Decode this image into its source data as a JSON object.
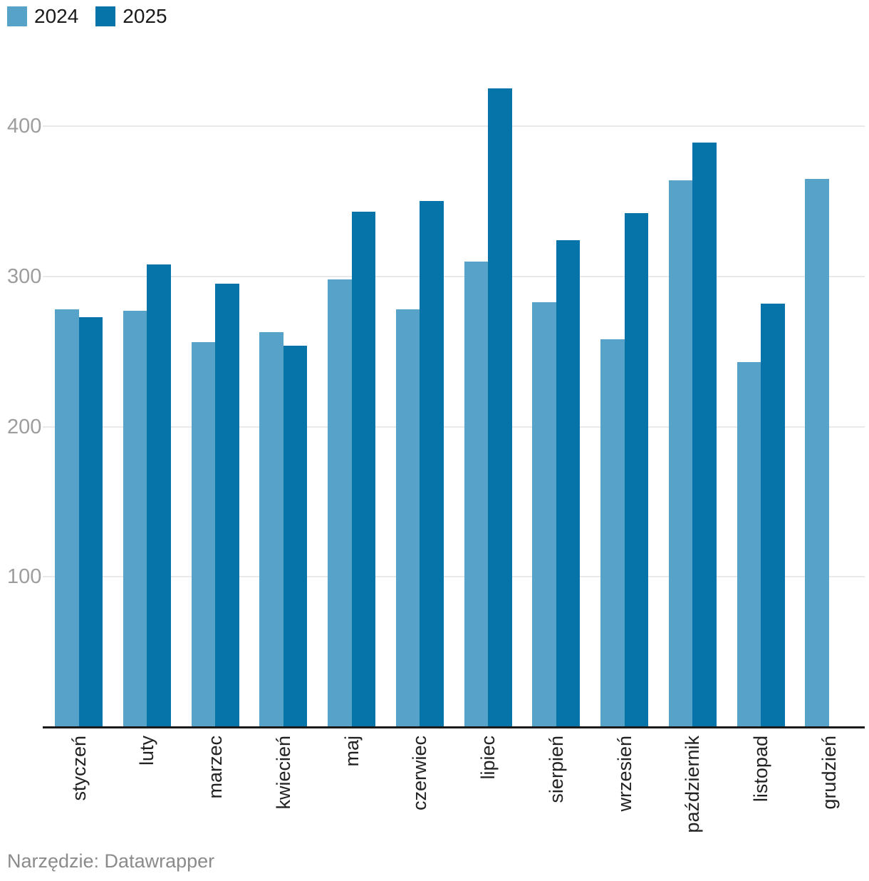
{
  "chart_data": {
    "type": "bar",
    "title": "",
    "xlabel": "",
    "ylabel": "",
    "categories": [
      "styczeń",
      "luty",
      "marzec",
      "kwiecień",
      "maj",
      "czerwiec",
      "lipiec",
      "sierpień",
      "wrzesień",
      "październik",
      "listopad",
      "grudzień"
    ],
    "series": [
      {
        "name": "2024",
        "color": "#57A2C9",
        "values": [
          278,
          277,
          256,
          263,
          298,
          278,
          310,
          283,
          258,
          364,
          243,
          365
        ]
      },
      {
        "name": "2025",
        "color": "#0674A8",
        "values": [
          273,
          308,
          295,
          254,
          343,
          350,
          425,
          324,
          342,
          389,
          282,
          null
        ]
      }
    ],
    "ylim": [
      0,
      440
    ],
    "yticks": [
      100,
      200,
      300,
      400
    ],
    "grid": true,
    "legend_position": "top-left",
    "x_tick_rotation": -90
  },
  "footer": {
    "tool_label": "Narzędzie: Datawrapper"
  },
  "colors": {
    "gridline": "#e9e9e9",
    "axis_line": "#1a1a1a",
    "ytick_label": "#9d9d9d",
    "xtick_label": "#222222",
    "footer_text": "#8b8b8b"
  }
}
